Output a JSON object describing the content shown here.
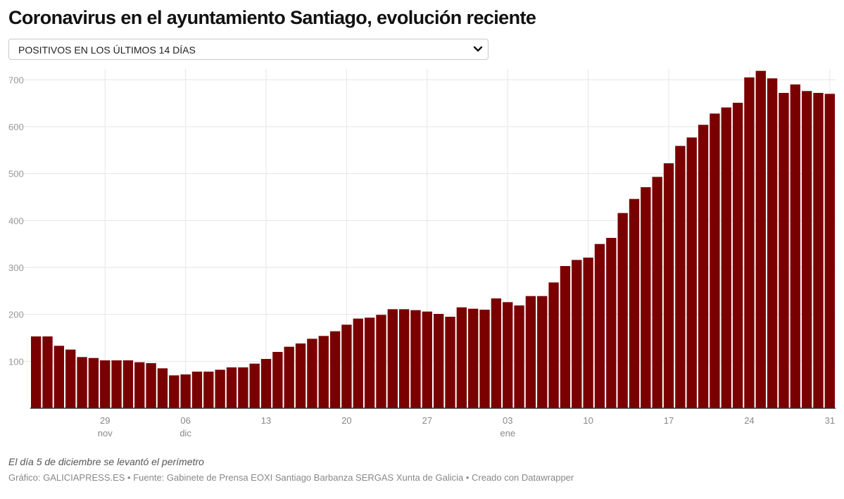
{
  "header": {
    "title": "Coronavirus en el ayuntamiento Santiago, evolución reciente"
  },
  "selector": {
    "selected_label": "POSITIVOS EN LOS ÚLTIMOS 14 DÍAS",
    "icon": "chevron-down-icon"
  },
  "chart_data": {
    "type": "bar",
    "title": "Coronavirus en el ayuntamiento Santiago, evolución reciente",
    "series": [
      {
        "name": "",
        "color": "#7a0000"
      }
    ],
    "x": [
      "2020-11-23",
      "2020-11-24",
      "2020-11-25",
      "2020-11-26",
      "2020-11-27",
      "2020-11-28",
      "2020-11-29",
      "2020-11-30",
      "2020-12-01",
      "2020-12-02",
      "2020-12-03",
      "2020-12-04",
      "2020-12-05",
      "2020-12-06",
      "2020-12-07",
      "2020-12-08",
      "2020-12-09",
      "2020-12-10",
      "2020-12-11",
      "2020-12-12",
      "2020-12-13",
      "2020-12-14",
      "2020-12-15",
      "2020-12-16",
      "2020-12-17",
      "2020-12-18",
      "2020-12-19",
      "2020-12-20",
      "2020-12-21",
      "2020-12-22",
      "2020-12-23",
      "2020-12-24",
      "2020-12-25",
      "2020-12-26",
      "2020-12-27",
      "2020-12-28",
      "2020-12-29",
      "2020-12-30",
      "2020-12-31",
      "2021-01-01",
      "2021-01-02",
      "2021-01-03",
      "2021-01-04",
      "2021-01-05",
      "2021-01-06",
      "2021-01-07",
      "2021-01-08",
      "2021-01-09",
      "2021-01-10",
      "2021-01-11",
      "2021-01-12",
      "2021-01-13",
      "2021-01-14",
      "2021-01-15",
      "2021-01-16",
      "2021-01-17",
      "2021-01-18",
      "2021-01-19",
      "2021-01-20",
      "2021-01-21",
      "2021-01-22",
      "2021-01-23",
      "2021-01-24",
      "2021-01-25",
      "2021-01-26",
      "2021-01-27",
      "2021-01-28",
      "2021-01-29",
      "2021-01-30",
      "2021-01-31"
    ],
    "values": [
      153,
      153,
      133,
      125,
      109,
      107,
      102,
      102,
      102,
      98,
      96,
      85,
      70,
      72,
      78,
      78,
      82,
      87,
      87,
      95,
      105,
      120,
      131,
      138,
      148,
      154,
      164,
      178,
      191,
      193,
      199,
      211,
      211,
      209,
      206,
      201,
      195,
      215,
      212,
      210,
      234,
      226,
      219,
      239,
      239,
      268,
      303,
      316,
      321,
      350,
      363,
      416,
      446,
      471,
      493,
      522,
      559,
      577,
      604,
      628,
      641,
      651,
      705,
      719,
      703,
      672,
      690,
      676,
      672,
      670
    ],
    "ylim": [
      0,
      720
    ],
    "yticks": [
      100,
      200,
      300,
      400,
      500,
      600,
      700
    ],
    "xticks": [
      {
        "label": "29",
        "sub": "nov",
        "index": 6
      },
      {
        "label": "06",
        "sub": "dic",
        "index": 13
      },
      {
        "label": "13",
        "sub": "",
        "index": 20
      },
      {
        "label": "20",
        "sub": "",
        "index": 27
      },
      {
        "label": "27",
        "sub": "",
        "index": 34
      },
      {
        "label": "03",
        "sub": "ene",
        "index": 41
      },
      {
        "label": "10",
        "sub": "",
        "index": 48
      },
      {
        "label": "17",
        "sub": "",
        "index": 55
      },
      {
        "label": "24",
        "sub": "",
        "index": 62
      },
      {
        "label": "31",
        "sub": "",
        "index": 69
      }
    ],
    "grid": true
  },
  "notes": {
    "annotation": "El día 5 de diciembre se levantó el perímetro"
  },
  "footer": {
    "credit": "Gráfico: GALICIAPRESS.ES • Fuente: Gabinete de Prensa EOXI Santiago Barbanza SERGAS Xunta de Galicia • Creado con Datawrapper"
  }
}
